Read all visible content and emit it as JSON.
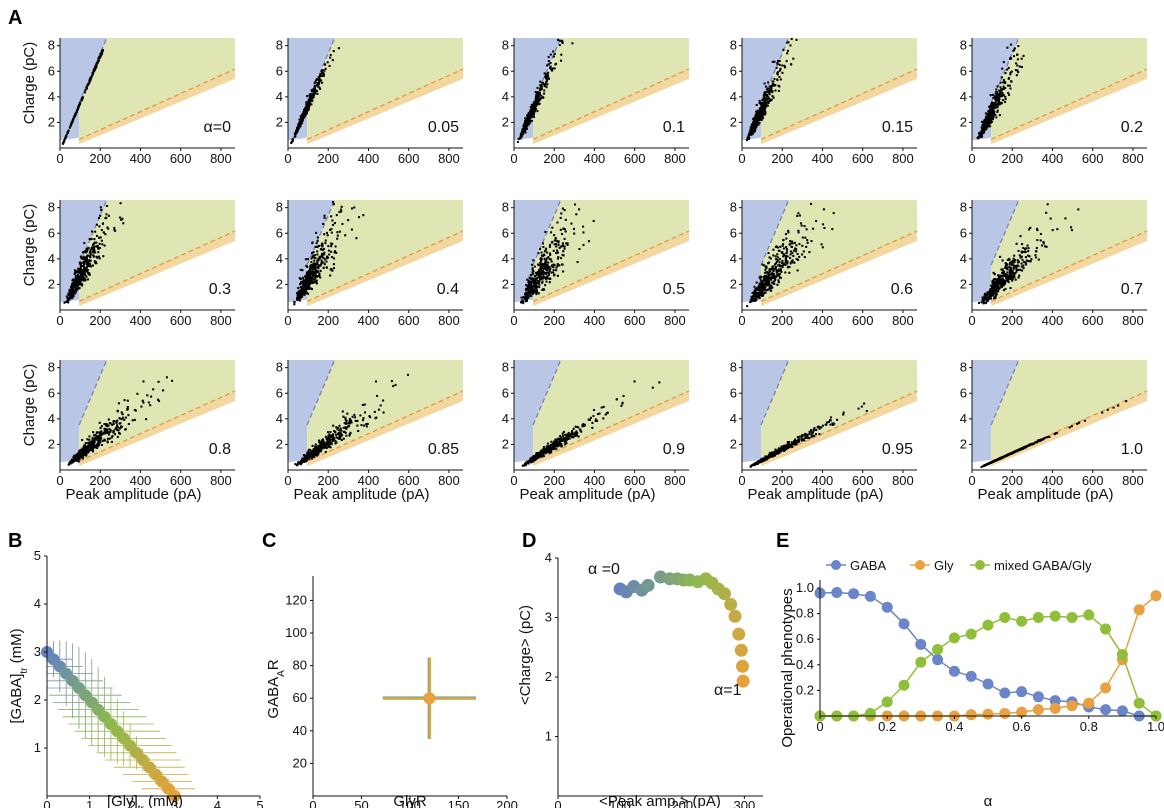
{
  "panel_labels": [
    "A",
    "B",
    "C",
    "D",
    "E"
  ],
  "panelA": {
    "ylabel": "Charge (pC)",
    "xlabel": "Peak amplitude (pA)",
    "xticks": [
      "0",
      "200",
      "400",
      "600",
      "800"
    ],
    "yticks": [
      "2",
      "4",
      "6",
      "8"
    ],
    "alpha_labels": [
      "α=0",
      "0.05",
      "0.1",
      "0.15",
      "0.2",
      "0.3",
      "0.4",
      "0.5",
      "0.6",
      "0.7",
      "0.8",
      "0.85",
      "0.9",
      "0.95",
      "1.0"
    ],
    "colors": {
      "gaba_region": "#b9c6e6",
      "mixed_region": "#dfe6b4",
      "gly_region": "#f3d7a0",
      "gaba_line": "#6b7fb8",
      "gly_line": "#e0a040",
      "points": "#000000"
    }
  },
  "panelB": {
    "ylabel": "[GABA]",
    "ylabel_sub": "tr",
    "ylabel_unit": " (mM)",
    "xlabel": "[Gly]",
    "xlabel_sub": "tr",
    "xlabel_unit": " (mM)",
    "xticks": [
      "0",
      "1",
      "2",
      "3",
      "4",
      "5"
    ],
    "yticks": [
      "1",
      "2",
      "3",
      "4",
      "5"
    ]
  },
  "panelC": {
    "ylabel_main": "GABA",
    "ylabel_sub": "A",
    "ylabel_tail": "R",
    "xlabel": "GlyR",
    "xticks": [
      "0",
      "50",
      "100",
      "150",
      "200"
    ],
    "yticks": [
      "20",
      "40",
      "60",
      "80",
      "100",
      "120"
    ]
  },
  "panelD": {
    "ylabel": "<Charge> (pC)",
    "xlabel": "<Peak amp.> (pA)",
    "xticks": [
      "0",
      "100",
      "200",
      "300"
    ],
    "yticks": [
      "1",
      "2",
      "3",
      "4"
    ],
    "annot_start": "α =0",
    "annot_end": "α=1"
  },
  "panelE": {
    "ylabel": "Operational phenotypes",
    "xlabel": "α",
    "xticks": [
      "0",
      "0.2",
      "0.4",
      "0.6",
      "0.8",
      "1.0"
    ],
    "yticks": [
      "0.2",
      "0.4",
      "0.6",
      "0.8",
      "1.0"
    ],
    "legend": [
      "GABA",
      "Gly",
      "mixed GABA/Gly"
    ],
    "colors": {
      "GABA": "#6a86c8",
      "Gly": "#e8a040",
      "mixed": "#8fbf3a"
    }
  },
  "chart_data": [
    {
      "type": "scatter",
      "panel": "A",
      "subplots": 15,
      "alpha": [
        0,
        0.05,
        0.1,
        0.15,
        0.2,
        0.3,
        0.4,
        0.5,
        0.6,
        0.7,
        0.8,
        0.85,
        0.9,
        0.95,
        1.0
      ],
      "xlabel": "Peak amplitude (pA)",
      "ylabel": "Charge (pC)",
      "xlim": [
        0,
        870
      ],
      "ylim": [
        0,
        8.6
      ],
      "gaba_slope_pC_per_pA": 0.037,
      "gly_slope_pC_per_pA": 0.0071
    },
    {
      "type": "scatter",
      "panel": "B",
      "xlabel": "[Gly]tr (mM)",
      "ylabel": "[GABA]tr (mM)",
      "xlim": [
        0,
        5
      ],
      "ylim": [
        0,
        5
      ],
      "x": [
        0,
        0.15,
        0.3,
        0.45,
        0.6,
        0.75,
        0.9,
        1.05,
        1.2,
        1.35,
        1.5,
        1.65,
        1.8,
        1.95,
        2.1,
        2.25,
        2.4,
        2.55,
        2.7,
        2.85,
        3.0
      ],
      "y": [
        3.0,
        2.85,
        2.7,
        2.55,
        2.4,
        2.25,
        2.1,
        1.95,
        1.8,
        1.65,
        1.5,
        1.35,
        1.2,
        1.05,
        0.9,
        0.75,
        0.6,
        0.45,
        0.3,
        0.15,
        0.0
      ]
    },
    {
      "type": "scatter",
      "panel": "C",
      "xlabel": "GlyR",
      "ylabel": "GABAAR",
      "xlim": [
        0,
        200
      ],
      "ylim": [
        0,
        135
      ],
      "x": [
        120
      ],
      "y": [
        60
      ],
      "x_error": [
        48
      ],
      "y_error": [
        25
      ]
    },
    {
      "type": "scatter",
      "panel": "D",
      "xlabel": "<Peak amp.> (pA)",
      "ylabel": "<Charge> (pC)",
      "xlim": [
        0,
        330
      ],
      "ylim": [
        0,
        4
      ],
      "x": [
        100,
        110,
        122,
        135,
        145,
        165,
        180,
        192,
        202,
        212,
        225,
        238,
        248,
        258,
        268,
        278,
        285,
        291,
        295,
        297,
        298
      ],
      "y": [
        3.48,
        3.43,
        3.52,
        3.46,
        3.54,
        3.68,
        3.65,
        3.65,
        3.63,
        3.63,
        3.6,
        3.65,
        3.58,
        3.48,
        3.4,
        3.22,
        3.02,
        2.72,
        2.45,
        2.18,
        1.93
      ]
    },
    {
      "type": "line",
      "panel": "E",
      "xlabel": "α",
      "ylabel": "Operational phenotypes",
      "xlim": [
        0,
        1
      ],
      "ylim": [
        0,
        1
      ],
      "x": [
        0,
        0.05,
        0.1,
        0.15,
        0.2,
        0.25,
        0.3,
        0.35,
        0.4,
        0.45,
        0.5,
        0.55,
        0.6,
        0.65,
        0.7,
        0.75,
        0.8,
        0.85,
        0.9,
        0.95,
        1.0
      ],
      "series": [
        {
          "name": "GABA",
          "values": [
            0.96,
            0.965,
            0.955,
            0.935,
            0.85,
            0.72,
            0.56,
            0.44,
            0.35,
            0.31,
            0.25,
            0.18,
            0.19,
            0.15,
            0.12,
            0.11,
            0.07,
            0.05,
            0.04,
            0.0,
            0.0
          ]
        },
        {
          "name": "Gly",
          "values": [
            0.0,
            0.0,
            0.0,
            0.0,
            0.0,
            0.0,
            0.0,
            0.0,
            0.0,
            0.01,
            0.015,
            0.02,
            0.03,
            0.05,
            0.06,
            0.08,
            0.1,
            0.22,
            0.44,
            0.83,
            0.94
          ]
        },
        {
          "name": "mixed GABA/Gly",
          "values": [
            0.0,
            0.0,
            0.0,
            0.02,
            0.11,
            0.24,
            0.42,
            0.52,
            0.61,
            0.64,
            0.71,
            0.77,
            0.74,
            0.77,
            0.78,
            0.77,
            0.79,
            0.68,
            0.48,
            0.1,
            0.0
          ]
        }
      ]
    }
  ]
}
